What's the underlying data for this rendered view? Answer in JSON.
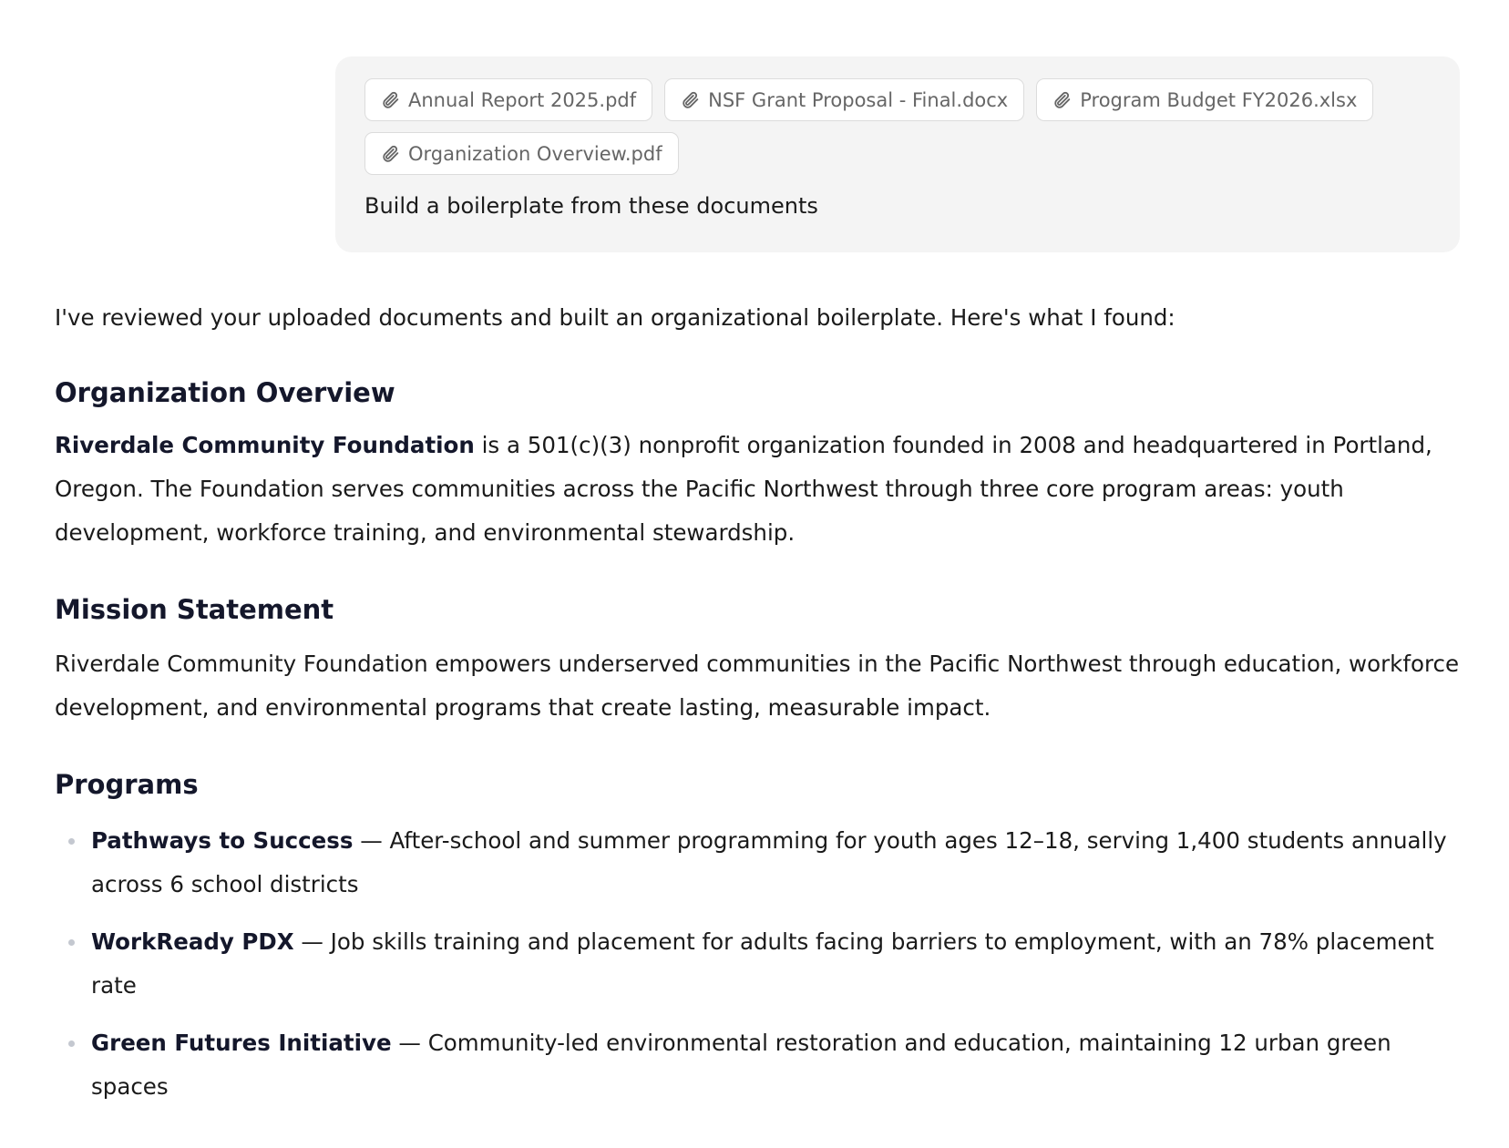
{
  "user_message": {
    "attachments": [
      {
        "name": "Annual Report 2025.pdf",
        "icon": "paperclip-icon"
      },
      {
        "name": "NSF Grant Proposal - Final.docx",
        "icon": "paperclip-icon"
      },
      {
        "name": "Program Budget FY2026.xlsx",
        "icon": "paperclip-icon"
      },
      {
        "name": "Organization Overview.pdf",
        "icon": "paperclip-icon"
      }
    ],
    "text": "Build a boilerplate from these documents"
  },
  "reply": {
    "intro": "I've reviewed your uploaded documents and built an organizational boilerplate. Here's what I found:",
    "overview": {
      "heading": "Organization Overview",
      "org_name": "Riverdale Community Foundation",
      "body": " is a 501(c)(3) nonprofit organization founded in 2008 and headquartered in Portland, Oregon. The Foundation serves communities across the Pacific Northwest through three core program areas: youth development, workforce training, and environmental stewardship."
    },
    "mission": {
      "heading": "Mission Statement",
      "body": "Riverdale Community Foundation empowers underserved communities in the Pacific Northwest through education, workforce development, and environmental programs that create lasting, measurable impact."
    },
    "programs": {
      "heading": "Programs",
      "items": [
        {
          "name": "Pathways to Success",
          "desc": " — After-school and summer programming for youth ages 12–18, serving 1,400 students annually across 6 school districts"
        },
        {
          "name": "WorkReady PDX",
          "desc": " — Job skills training and placement for adults facing barriers to employment, with an 78% placement rate"
        },
        {
          "name": "Green Futures Initiative",
          "desc": " — Community-led environmental restoration and education, maintaining 12 urban green spaces"
        }
      ]
    }
  }
}
